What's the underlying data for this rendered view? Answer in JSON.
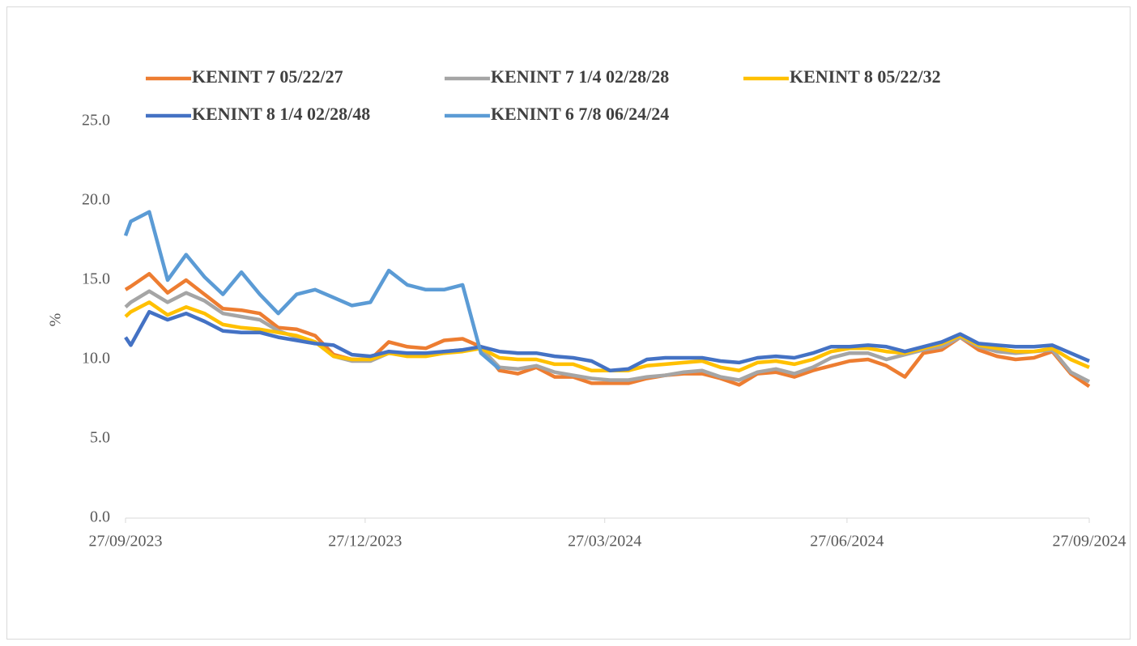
{
  "chart_data": {
    "type": "line",
    "x": [
      "27/09/2023",
      "29/09/2023",
      "06/10/2023",
      "13/10/2023",
      "20/10/2023",
      "27/10/2023",
      "03/11/2023",
      "10/11/2023",
      "17/11/2023",
      "24/11/2023",
      "01/12/2023",
      "08/12/2023",
      "15/12/2023",
      "22/12/2023",
      "29/12/2023",
      "05/01/2024",
      "12/01/2024",
      "19/01/2024",
      "26/01/2024",
      "02/02/2024",
      "09/02/2024",
      "16/02/2024",
      "23/02/2024",
      "01/03/2024",
      "08/03/2024",
      "15/03/2024",
      "22/03/2024",
      "29/03/2024",
      "05/04/2024",
      "12/04/2024",
      "19/04/2024",
      "26/04/2024",
      "03/05/2024",
      "10/05/2024",
      "17/05/2024",
      "24/05/2024",
      "31/05/2024",
      "07/06/2024",
      "14/06/2024",
      "21/06/2024",
      "28/06/2024",
      "05/07/2024",
      "12/07/2024",
      "19/07/2024",
      "26/07/2024",
      "02/08/2024",
      "09/08/2024",
      "16/08/2024",
      "23/08/2024",
      "30/08/2024",
      "06/09/2024",
      "13/09/2024",
      "20/09/2024",
      "27/09/2024"
    ],
    "series": [
      {
        "name": "KENINT 7 05/22/27",
        "color": "#ED7D31",
        "values": [
          14.4,
          14.6,
          15.4,
          14.2,
          15.0,
          14.1,
          13.2,
          13.1,
          12.9,
          12.0,
          11.9,
          11.5,
          10.3,
          10.0,
          10.0,
          11.1,
          10.8,
          10.7,
          11.2,
          11.3,
          10.8,
          9.3,
          9.1,
          9.5,
          8.9,
          8.9,
          8.5,
          8.5,
          8.5,
          8.8,
          9.0,
          9.1,
          9.1,
          8.8,
          8.4,
          9.1,
          9.2,
          8.9,
          9.3,
          9.6,
          9.9,
          10.0,
          9.6,
          8.9,
          10.4,
          10.6,
          11.4,
          10.6,
          10.2,
          10.0,
          10.1,
          10.5,
          9.1,
          8.3
        ]
      },
      {
        "name": "KENINT 7 1/4 02/28/28",
        "color": "#A5A5A5",
        "values": [
          13.3,
          13.6,
          14.3,
          13.6,
          14.2,
          13.7,
          12.9,
          12.7,
          12.5,
          11.8,
          11.4,
          11.1,
          10.2,
          9.9,
          9.9,
          10.4,
          10.3,
          10.3,
          10.5,
          10.6,
          10.7,
          9.5,
          9.4,
          9.6,
          9.2,
          9.0,
          8.8,
          8.7,
          8.7,
          8.9,
          9.0,
          9.2,
          9.3,
          8.9,
          8.7,
          9.2,
          9.4,
          9.1,
          9.5,
          10.1,
          10.4,
          10.4,
          10.0,
          10.3,
          10.6,
          10.8,
          11.4,
          10.8,
          10.5,
          10.4,
          10.5,
          10.6,
          9.2,
          8.6
        ]
      },
      {
        "name": "KENINT 8 05/22/32",
        "color": "#FFC000",
        "values": [
          12.7,
          13.0,
          13.6,
          12.8,
          13.3,
          12.9,
          12.2,
          12.0,
          11.9,
          11.7,
          11.5,
          11.1,
          10.2,
          10.0,
          10.0,
          10.4,
          10.2,
          10.2,
          10.4,
          10.5,
          10.7,
          10.1,
          10.0,
          10.0,
          9.7,
          9.7,
          9.3,
          9.3,
          9.3,
          9.6,
          9.7,
          9.8,
          9.9,
          9.5,
          9.3,
          9.8,
          9.9,
          9.7,
          10.0,
          10.5,
          10.7,
          10.7,
          10.5,
          10.4,
          10.7,
          11.0,
          11.5,
          10.9,
          10.7,
          10.5,
          10.5,
          10.7,
          10.0,
          9.5
        ]
      },
      {
        "name": "KENINT 8 1/4 02/28/48",
        "color": "#4472C4",
        "values": [
          11.4,
          10.9,
          13.0,
          12.5,
          12.9,
          12.4,
          11.8,
          11.7,
          11.7,
          11.4,
          11.2,
          11.0,
          10.9,
          10.3,
          10.2,
          10.5,
          10.4,
          10.4,
          10.5,
          10.6,
          10.8,
          10.5,
          10.4,
          10.4,
          10.2,
          10.1,
          9.9,
          9.3,
          9.4,
          10.0,
          10.1,
          10.1,
          10.1,
          9.9,
          9.8,
          10.1,
          10.2,
          10.1,
          10.4,
          10.8,
          10.8,
          10.9,
          10.8,
          10.5,
          10.8,
          11.1,
          11.6,
          11.0,
          10.9,
          10.8,
          10.8,
          10.9,
          10.4,
          9.9
        ]
      },
      {
        "name": "KENINT 6 7/8 06/24/24",
        "color": "#5B9BD5",
        "values": [
          17.8,
          18.7,
          19.3,
          15.0,
          16.6,
          15.2,
          14.1,
          15.5,
          14.1,
          12.9,
          14.1,
          14.4,
          13.9,
          13.4,
          13.6,
          15.6,
          14.7,
          14.4,
          14.4,
          14.7,
          10.4,
          9.4,
          null,
          null,
          null,
          null,
          null,
          null,
          null,
          null,
          null,
          null,
          null,
          null,
          null,
          null,
          null,
          null,
          null,
          null,
          null,
          null,
          null,
          null,
          null,
          null,
          null,
          null,
          null,
          null,
          null,
          null,
          null,
          null
        ]
      }
    ],
    "xlim": [
      "27/09/2023",
      "27/09/2024"
    ],
    "xticks": [
      "27/09/2023",
      "27/12/2023",
      "27/03/2024",
      "27/06/2024",
      "27/09/2024"
    ],
    "ylabel": "%",
    "ylim": [
      0,
      25
    ],
    "yticks": [
      {
        "value": 0,
        "label": "0.0"
      },
      {
        "value": 5,
        "label": "5.0"
      },
      {
        "value": 10,
        "label": "10.0"
      },
      {
        "value": 15,
        "label": "15.0"
      },
      {
        "value": 20,
        "label": "20.0"
      },
      {
        "value": 25,
        "label": "25.0"
      }
    ]
  }
}
